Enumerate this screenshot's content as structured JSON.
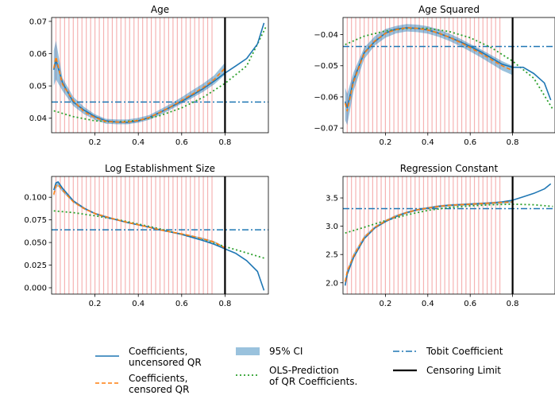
{
  "chart_data": [
    {
      "type": "line",
      "title": "Age",
      "xlim": [
        0.0,
        1.0
      ],
      "ylim": [
        0.0355,
        0.0712
      ],
      "xticks": [
        0.2,
        0.4,
        0.6,
        0.8
      ],
      "xtick_labels": [
        "0.2",
        "0.4",
        "0.6",
        "0.8"
      ],
      "yticks": [
        0.04,
        0.05,
        0.06,
        0.07
      ],
      "ytick_labels": [
        "0.04",
        "0.05",
        "0.06",
        "0.07"
      ],
      "tobit_coefficient": 0.045,
      "censoring_limit": 0.8,
      "series": [
        {
          "name": "Coefficients, uncensored QR",
          "x": [
            0.01,
            0.02,
            0.05,
            0.1,
            0.15,
            0.2,
            0.25,
            0.3,
            0.35,
            0.4,
            0.45,
            0.5,
            0.55,
            0.6,
            0.65,
            0.7,
            0.75,
            0.8,
            0.85,
            0.9,
            0.95,
            0.98
          ],
          "y": [
            0.055,
            0.058,
            0.051,
            0.045,
            0.0425,
            0.0405,
            0.0392,
            0.0388,
            0.0387,
            0.0392,
            0.0402,
            0.0418,
            0.0435,
            0.0452,
            0.0472,
            0.0492,
            0.0515,
            0.054,
            0.0562,
            0.0585,
            0.063,
            0.0695
          ]
        },
        {
          "name": "Coefficients, censored QR",
          "x": [
            0.01,
            0.02,
            0.05,
            0.1,
            0.15,
            0.2,
            0.25,
            0.3,
            0.35,
            0.4,
            0.45,
            0.5,
            0.55,
            0.6,
            0.65,
            0.7,
            0.75,
            0.8
          ],
          "y": [
            0.0555,
            0.059,
            0.0505,
            0.0455,
            0.042,
            0.0402,
            0.039,
            0.0388,
            0.0388,
            0.0393,
            0.0402,
            0.0418,
            0.0436,
            0.0455,
            0.0475,
            0.0495,
            0.052,
            0.0555
          ]
        },
        {
          "name": "95% CI",
          "x": [
            0.01,
            0.02,
            0.05,
            0.1,
            0.15,
            0.2,
            0.25,
            0.3,
            0.35,
            0.4,
            0.45,
            0.5,
            0.55,
            0.6,
            0.65,
            0.7,
            0.75,
            0.8
          ],
          "lower": [
            0.05,
            0.052,
            0.0485,
            0.0438,
            0.0412,
            0.0395,
            0.0383,
            0.0381,
            0.0381,
            0.0386,
            0.0395,
            0.041,
            0.0427,
            0.0445,
            0.0463,
            0.0482,
            0.0505,
            0.0535
          ],
          "upper": [
            0.061,
            0.064,
            0.0525,
            0.0466,
            0.0435,
            0.0412,
            0.0398,
            0.0396,
            0.0396,
            0.0401,
            0.041,
            0.0427,
            0.0445,
            0.0465,
            0.0487,
            0.0508,
            0.0533,
            0.0572
          ]
        },
        {
          "name": "OLS-Prediction of QR Coefficients.",
          "x": [
            0.01,
            0.1,
            0.2,
            0.3,
            0.4,
            0.5,
            0.6,
            0.7,
            0.8,
            0.9,
            0.99
          ],
          "y": [
            0.0423,
            0.0405,
            0.0392,
            0.0388,
            0.0393,
            0.0408,
            0.0432,
            0.0465,
            0.0508,
            0.0562,
            0.0685
          ]
        }
      ]
    },
    {
      "type": "line",
      "title": "Age Squared",
      "xlim": [
        0.0,
        1.0
      ],
      "ylim": [
        -0.0715,
        -0.0345
      ],
      "xticks": [
        0.2,
        0.4,
        0.6,
        0.8
      ],
      "xtick_labels": [
        "0.2",
        "0.4",
        "0.6",
        "0.8"
      ],
      "yticks": [
        -0.07,
        -0.06,
        -0.05,
        -0.04
      ],
      "ytick_labels": [
        "−0.07",
        "−0.06",
        "−0.05",
        "−0.04"
      ],
      "tobit_coefficient": -0.0438,
      "censoring_limit": 0.8,
      "series": [
        {
          "name": "Coefficients, uncensored QR",
          "x": [
            0.01,
            0.02,
            0.05,
            0.1,
            0.15,
            0.2,
            0.25,
            0.3,
            0.35,
            0.4,
            0.45,
            0.5,
            0.55,
            0.6,
            0.65,
            0.7,
            0.75,
            0.8,
            0.85,
            0.9,
            0.95,
            0.98
          ],
          "y": [
            -0.0615,
            -0.0635,
            -0.0545,
            -0.0458,
            -0.0422,
            -0.0395,
            -0.0382,
            -0.0378,
            -0.038,
            -0.0385,
            -0.0395,
            -0.0408,
            -0.0422,
            -0.0438,
            -0.0455,
            -0.0475,
            -0.0495,
            -0.0505,
            -0.0505,
            -0.0525,
            -0.0555,
            -0.061
          ]
        },
        {
          "name": "Coefficients, censored QR",
          "x": [
            0.01,
            0.02,
            0.05,
            0.1,
            0.15,
            0.2,
            0.25,
            0.3,
            0.35,
            0.4,
            0.45,
            0.5,
            0.55,
            0.6,
            0.65,
            0.7,
            0.75,
            0.8
          ],
          "y": [
            -0.062,
            -0.0645,
            -0.055,
            -0.046,
            -0.042,
            -0.0396,
            -0.0384,
            -0.0378,
            -0.038,
            -0.0385,
            -0.0395,
            -0.0408,
            -0.0424,
            -0.0442,
            -0.046,
            -0.048,
            -0.05,
            -0.0515
          ]
        },
        {
          "name": "95% CI",
          "x": [
            0.01,
            0.02,
            0.05,
            0.1,
            0.15,
            0.2,
            0.25,
            0.3,
            0.35,
            0.4,
            0.45,
            0.5,
            0.55,
            0.6,
            0.65,
            0.7,
            0.75,
            0.8
          ],
          "lower": [
            -0.0675,
            -0.069,
            -0.058,
            -0.0478,
            -0.0435,
            -0.041,
            -0.0396,
            -0.039,
            -0.0392,
            -0.0397,
            -0.0407,
            -0.042,
            -0.0436,
            -0.0454,
            -0.0473,
            -0.0494,
            -0.0515,
            -0.053
          ],
          "upper": [
            -0.057,
            -0.059,
            -0.052,
            -0.0442,
            -0.0405,
            -0.0382,
            -0.0372,
            -0.0366,
            -0.0368,
            -0.0373,
            -0.0383,
            -0.0396,
            -0.0412,
            -0.043,
            -0.0447,
            -0.0466,
            -0.0485,
            -0.05
          ]
        },
        {
          "name": "OLS-Prediction of QR Coefficients.",
          "x": [
            0.01,
            0.1,
            0.2,
            0.3,
            0.4,
            0.5,
            0.6,
            0.7,
            0.8,
            0.9,
            0.99
          ],
          "y": [
            -0.0432,
            -0.0405,
            -0.0388,
            -0.038,
            -0.038,
            -0.039,
            -0.041,
            -0.0442,
            -0.0485,
            -0.054,
            -0.064
          ]
        }
      ]
    },
    {
      "type": "line",
      "title": "Log Establishment Size",
      "xlim": [
        0.0,
        1.0
      ],
      "ylim": [
        -0.007,
        0.123
      ],
      "xticks": [
        0.2,
        0.4,
        0.6,
        0.8
      ],
      "xtick_labels": [
        "0.2",
        "0.4",
        "0.6",
        "0.8"
      ],
      "yticks": [
        0.0,
        0.025,
        0.05,
        0.075,
        0.1
      ],
      "ytick_labels": [
        "0.000",
        "0.025",
        "0.050",
        "0.075",
        "0.100"
      ],
      "tobit_coefficient": 0.064,
      "censoring_limit": 0.8,
      "series": [
        {
          "name": "Coefficients, uncensored QR",
          "x": [
            0.01,
            0.02,
            0.03,
            0.05,
            0.1,
            0.15,
            0.2,
            0.25,
            0.3,
            0.35,
            0.4,
            0.45,
            0.5,
            0.55,
            0.6,
            0.65,
            0.7,
            0.75,
            0.8,
            0.85,
            0.9,
            0.95,
            0.98
          ],
          "y": [
            0.108,
            0.116,
            0.117,
            0.11,
            0.096,
            0.088,
            0.082,
            0.078,
            0.075,
            0.072,
            0.0695,
            0.067,
            0.064,
            0.0615,
            0.059,
            0.0555,
            0.052,
            0.048,
            0.043,
            0.038,
            0.03,
            0.018,
            -0.003
          ]
        },
        {
          "name": "Coefficients, censored QR",
          "x": [
            0.01,
            0.02,
            0.03,
            0.05,
            0.1,
            0.15,
            0.2,
            0.25,
            0.3,
            0.35,
            0.4,
            0.45,
            0.5,
            0.55,
            0.6,
            0.65,
            0.7,
            0.75,
            0.8
          ],
          "y": [
            0.103,
            0.113,
            0.114,
            0.108,
            0.095,
            0.0875,
            0.082,
            0.0785,
            0.0752,
            0.0722,
            0.0695,
            0.0668,
            0.064,
            0.0618,
            0.0595,
            0.057,
            0.054,
            0.0505,
            0.044
          ]
        },
        {
          "name": "95% CI",
          "x": [
            0.01,
            0.02,
            0.03,
            0.05,
            0.1,
            0.15,
            0.2,
            0.25,
            0.3,
            0.35,
            0.4,
            0.45,
            0.5,
            0.55,
            0.6,
            0.65,
            0.7,
            0.75,
            0.8
          ],
          "lower": [
            0.1,
            0.11,
            0.112,
            0.106,
            0.094,
            0.0865,
            0.081,
            0.0775,
            0.0745,
            0.0715,
            0.0688,
            0.0662,
            0.0634,
            0.0612,
            0.0588,
            0.0562,
            0.053,
            0.0495,
            0.043
          ],
          "upper": [
            0.106,
            0.116,
            0.116,
            0.11,
            0.0965,
            0.0885,
            0.083,
            0.0795,
            0.076,
            0.073,
            0.0702,
            0.0675,
            0.0647,
            0.0624,
            0.0602,
            0.0578,
            0.055,
            0.0515,
            0.045
          ]
        },
        {
          "name": "OLS-Prediction of QR Coefficients.",
          "x": [
            0.01,
            0.1,
            0.2,
            0.3,
            0.4,
            0.5,
            0.6,
            0.7,
            0.8,
            0.9,
            0.99
          ],
          "y": [
            0.085,
            0.083,
            0.0795,
            0.0755,
            0.0705,
            0.065,
            0.059,
            0.0525,
            0.0455,
            0.0385,
            0.032
          ]
        }
      ]
    },
    {
      "type": "line",
      "title": "Regression Constant",
      "xlim": [
        0.0,
        1.0
      ],
      "ylim": [
        1.8,
        3.88
      ],
      "xticks": [
        0.2,
        0.4,
        0.6,
        0.8
      ],
      "xtick_labels": [
        "0.2",
        "0.4",
        "0.6",
        "0.8"
      ],
      "yticks": [
        2.0,
        2.5,
        3.0,
        3.5
      ],
      "ytick_labels": [
        "2.0",
        "2.5",
        "3.0",
        "3.5"
      ],
      "tobit_coefficient": 3.31,
      "censoring_limit": 0.8,
      "series": [
        {
          "name": "Coefficients, uncensored QR",
          "x": [
            0.01,
            0.02,
            0.05,
            0.1,
            0.15,
            0.2,
            0.25,
            0.3,
            0.35,
            0.4,
            0.45,
            0.5,
            0.55,
            0.6,
            0.65,
            0.7,
            0.75,
            0.8,
            0.85,
            0.9,
            0.95,
            0.98
          ],
          "y": [
            1.95,
            2.15,
            2.45,
            2.78,
            2.97,
            3.08,
            3.17,
            3.24,
            3.29,
            3.32,
            3.35,
            3.37,
            3.38,
            3.39,
            3.4,
            3.41,
            3.43,
            3.46,
            3.52,
            3.58,
            3.66,
            3.75
          ]
        },
        {
          "name": "Coefficients, censored QR",
          "x": [
            0.01,
            0.02,
            0.05,
            0.1,
            0.15,
            0.2,
            0.25,
            0.3,
            0.35,
            0.4,
            0.45,
            0.5,
            0.55,
            0.6,
            0.65,
            0.7,
            0.75,
            0.8
          ],
          "y": [
            2.02,
            2.2,
            2.48,
            2.8,
            2.98,
            3.09,
            3.18,
            3.24,
            3.29,
            3.32,
            3.35,
            3.37,
            3.38,
            3.39,
            3.4,
            3.41,
            3.42,
            3.43
          ]
        },
        {
          "name": "95% CI",
          "x": [
            0.01,
            0.02,
            0.05,
            0.1,
            0.15,
            0.2,
            0.25,
            0.3,
            0.35,
            0.4,
            0.45,
            0.5,
            0.55,
            0.6,
            0.65,
            0.7,
            0.75,
            0.8
          ],
          "lower": [
            1.96,
            2.14,
            2.44,
            2.77,
            2.96,
            3.07,
            3.16,
            3.22,
            3.27,
            3.3,
            3.33,
            3.35,
            3.36,
            3.37,
            3.38,
            3.39,
            3.4,
            3.41
          ],
          "upper": [
            2.06,
            2.24,
            2.52,
            2.83,
            3.0,
            3.11,
            3.2,
            3.26,
            3.31,
            3.34,
            3.37,
            3.39,
            3.4,
            3.41,
            3.42,
            3.43,
            3.44,
            3.46
          ]
        },
        {
          "name": "OLS-Prediction of QR Coefficients.",
          "x": [
            0.01,
            0.1,
            0.2,
            0.3,
            0.4,
            0.5,
            0.6,
            0.7,
            0.8,
            0.9,
            0.99
          ],
          "y": [
            2.88,
            2.98,
            3.1,
            3.2,
            3.28,
            3.33,
            3.36,
            3.38,
            3.39,
            3.38,
            3.35
          ]
        }
      ]
    }
  ],
  "quantile_grid_lines": [
    0.02,
    0.04,
    0.06,
    0.08,
    0.1,
    0.12,
    0.14,
    0.16,
    0.18,
    0.2,
    0.22,
    0.24,
    0.26,
    0.28,
    0.3,
    0.32,
    0.34,
    0.36,
    0.38,
    0.4,
    0.42,
    0.44,
    0.46,
    0.48,
    0.5,
    0.52,
    0.54,
    0.56,
    0.58,
    0.6,
    0.62,
    0.64,
    0.66,
    0.68,
    0.7,
    0.72,
    0.74
  ],
  "legend": {
    "placement": "bottom",
    "items": [
      {
        "key": "uncensored",
        "label_lines": [
          "Coefficients,",
          "uncensored QR"
        ]
      },
      {
        "key": "censored",
        "label_lines": [
          "Coefficients,",
          "censored QR"
        ]
      },
      {
        "key": "ci",
        "label_lines": [
          "95% CI"
        ]
      },
      {
        "key": "ols",
        "label_lines": [
          "OLS-Prediction",
          " of QR Coefficients."
        ]
      },
      {
        "key": "tobit",
        "label_lines": [
          "Tobit Coefficient"
        ]
      },
      {
        "key": "limit",
        "label_lines": [
          "Censoring Limit"
        ]
      }
    ]
  },
  "colors": {
    "uncensored": "#1f77b4",
    "censored": "#ff7f0e",
    "ci": "#1f77b4",
    "ols": "#2ca02c",
    "tobit": "#1f77b4",
    "limit": "#000000",
    "quantile_grid": "#f4a6a6"
  }
}
